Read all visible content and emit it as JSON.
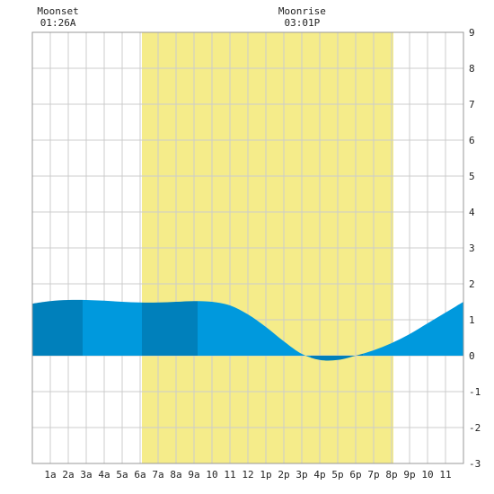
{
  "chart_data": {
    "type": "area",
    "x_unit": "hour of day",
    "xlim": [
      0,
      24
    ],
    "ylim": [
      -3,
      9
    ],
    "x_tick_labels": [
      "1a",
      "2a",
      "3a",
      "4a",
      "5a",
      "6a",
      "7a",
      "8a",
      "9a",
      "10",
      "11",
      "12",
      "1p",
      "2p",
      "3p",
      "4p",
      "5p",
      "6p",
      "7p",
      "8p",
      "9p",
      "10",
      "11"
    ],
    "y_tick_values": [
      -3,
      -2,
      -1,
      0,
      1,
      2,
      3,
      4,
      5,
      6,
      7,
      8,
      9
    ],
    "grid": true,
    "daylight": {
      "start": 6.1,
      "end": 20.1
    },
    "annotations": [
      {
        "id": "moonset",
        "title": "Moonset",
        "time": "01:26A",
        "hour": 1.43
      },
      {
        "id": "moonrise",
        "title": "Moonrise",
        "time": "03:01P",
        "hour": 15.02
      }
    ],
    "tide_series": {
      "x": [
        0,
        1,
        2,
        3,
        4,
        5,
        6,
        7,
        8,
        9,
        10,
        11,
        12,
        13,
        14,
        15,
        16,
        17,
        18,
        19,
        20,
        21,
        22,
        23,
        24
      ],
      "values": [
        1.45,
        1.52,
        1.55,
        1.55,
        1.53,
        1.5,
        1.48,
        1.48,
        1.5,
        1.52,
        1.5,
        1.4,
        1.15,
        0.8,
        0.4,
        0.05,
        -0.12,
        -0.12,
        0.0,
        0.15,
        0.35,
        0.6,
        0.9,
        1.2,
        1.5
      ]
    },
    "band_boundaries": [
      0,
      2.8,
      6.1,
      9.2,
      15.5,
      18.4,
      24
    ],
    "colors": {
      "daylight": "#f5ec8a",
      "tide_light": "#0099dd",
      "tide_dark": "#0080bb",
      "grid": "#cccccc",
      "frame": "#999999"
    }
  }
}
